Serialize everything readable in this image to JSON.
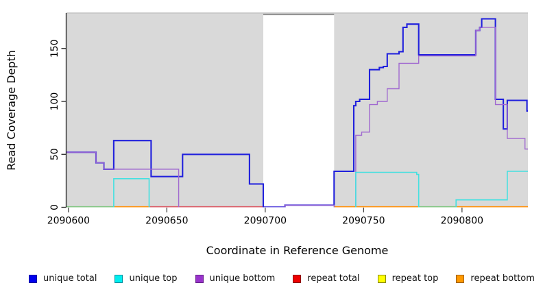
{
  "chart_data": {
    "type": "line",
    "subtype": "step-coverage",
    "title": "",
    "xlabel": "Coordinate in Reference Genome",
    "ylabel": "Read Coverage Depth",
    "x_ticks": [
      2090600,
      2090650,
      2090700,
      2090750,
      2090800
    ],
    "y_ticks": [
      0,
      50,
      100,
      150
    ],
    "xlim": [
      2090599,
      2090833.5
    ],
    "ylim": [
      0,
      183.5
    ],
    "grid": false,
    "plot_bg": "#d9d9d9",
    "plot_top_border": "#c4c4c4",
    "axis_color": "#222222",
    "gap_region": {
      "start": 2090699,
      "end": 2090735,
      "color": "#ffffff",
      "edge_color": "#8e8e8e"
    },
    "series_format": "runs = contiguous nonzero coverage; points are [coordinate, depth] steps; rise/drop mark vertical connectors to zero",
    "series": [
      {
        "name": "repeat total",
        "color": "#ee0000",
        "width": 1.3,
        "runs": [],
        "value_note": "0 across window"
      },
      {
        "name": "repeat top",
        "color": "#eeee00",
        "width": 1.3,
        "runs": [],
        "value_note": "0 across window"
      },
      {
        "name": "repeat bottom",
        "color": "#ff9514",
        "width": 1.8,
        "runs": [],
        "value_note": "0 across window"
      },
      {
        "name": "unique total",
        "color": "#2020dd",
        "width": 2.1,
        "runs": [
          {
            "rise": false,
            "drop": true,
            "points": [
              [
                2090599,
                52
              ],
              [
                2090614,
                42
              ],
              [
                2090618,
                36
              ],
              [
                2090623,
                63
              ],
              [
                2090642,
                29
              ],
              [
                2090658,
                50
              ],
              [
                2090692,
                22
              ],
              [
                2090699,
                22
              ]
            ]
          },
          {
            "rise": true,
            "drop": false,
            "points": [
              [
                2090710,
                2
              ],
              [
                2090735,
                34
              ],
              [
                2090745,
                96
              ],
              [
                2090746,
                100
              ],
              [
                2090748,
                102
              ],
              [
                2090753,
                130
              ],
              [
                2090758,
                132
              ],
              [
                2090760,
                133
              ],
              [
                2090762,
                145
              ],
              [
                2090768,
                147
              ],
              [
                2090770,
                170
              ],
              [
                2090772,
                173
              ],
              [
                2090778,
                144
              ],
              [
                2090807,
                167
              ],
              [
                2090809,
                170
              ],
              [
                2090810,
                178
              ],
              [
                2090817,
                102
              ],
              [
                2090821,
                74
              ],
              [
                2090823,
                101
              ],
              [
                2090833,
                91
              ],
              [
                2090834,
                91
              ]
            ]
          }
        ]
      },
      {
        "name": "unique bottom",
        "color": "#a069d0",
        "width": 1.4,
        "runs": [
          {
            "rise": false,
            "drop": true,
            "points": [
              [
                2090599,
                52
              ],
              [
                2090614,
                42
              ],
              [
                2090618,
                36
              ],
              [
                2090656,
                36
              ]
            ]
          },
          {
            "rise": true,
            "drop": true,
            "points": [
              [
                2090710,
                2
              ],
              [
                2090735,
                2
              ]
            ]
          },
          {
            "rise": true,
            "drop": false,
            "points": [
              [
                2090746,
                68
              ],
              [
                2090749,
                71
              ],
              [
                2090753,
                97
              ],
              [
                2090757,
                100
              ],
              [
                2090762,
                112
              ],
              [
                2090768,
                136
              ],
              [
                2090778,
                143
              ],
              [
                2090807,
                167
              ],
              [
                2090809,
                170
              ],
              [
                2090817,
                97
              ],
              [
                2090823,
                65
              ],
              [
                2090832,
                55
              ],
              [
                2090834,
                55
              ]
            ]
          }
        ]
      },
      {
        "name": "unique top",
        "color": "#44e0e0",
        "width": 1.6,
        "runs": [
          {
            "rise": true,
            "drop": true,
            "points": [
              [
                2090623,
                27
              ],
              [
                2090641,
                27
              ]
            ]
          },
          {
            "rise": true,
            "drop": true,
            "points": [
              [
                2090746,
                33
              ],
              [
                2090777,
                31
              ],
              [
                2090778,
                31
              ]
            ]
          },
          {
            "rise": true,
            "drop": false,
            "points": [
              [
                2090797,
                7
              ],
              [
                2090823,
                34
              ],
              [
                2090834,
                34
              ]
            ]
          }
        ]
      }
    ],
    "baseline_segments": [
      {
        "from": 2090599,
        "to": 2090623,
        "color": "#86c786"
      },
      {
        "from": 2090623,
        "to": 2090641,
        "color": "#ff9514"
      },
      {
        "from": 2090641,
        "to": 2090699,
        "color": "#db5f6a"
      },
      {
        "from": 2090699,
        "to": 2090710,
        "color": "#6a5ae0"
      },
      {
        "from": 2090735,
        "to": 2090778,
        "color": "#ff9514"
      },
      {
        "from": 2090778,
        "to": 2090797,
        "color": "#86c786"
      },
      {
        "from": 2090797,
        "to": 2090834,
        "color": "#ff9514"
      }
    ],
    "legend": [
      {
        "label": "unique total",
        "color": "#0000ee",
        "border": "#0000a0"
      },
      {
        "label": "unique top",
        "color": "#00eeee",
        "border": "#008fa0"
      },
      {
        "label": "unique bottom",
        "color": "#9933cc",
        "border": "#661f8a"
      },
      {
        "label": "repeat total",
        "color": "#ee0000",
        "border": "#8a0000"
      },
      {
        "label": "repeat top",
        "color": "#ffff00",
        "border": "#8a8a00"
      },
      {
        "label": "repeat bottom",
        "color": "#ff9900",
        "border": "#a06000"
      }
    ]
  }
}
